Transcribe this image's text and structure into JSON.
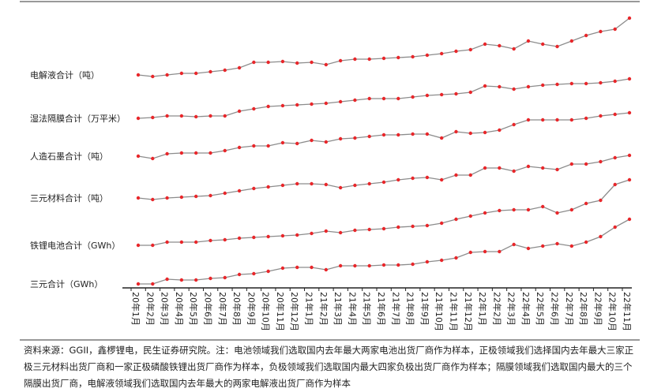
{
  "chart_data": {
    "type": "line",
    "categories": [
      "20年1月",
      "20年2月",
      "20年3月",
      "20年4月",
      "20年5月",
      "20年6月",
      "20年7月",
      "20年8月",
      "20年9月",
      "20年10月",
      "20年11月",
      "20年12月",
      "21年1月",
      "21年2月",
      "21年3月",
      "21年4月",
      "21年5月",
      "21年6月",
      "21年7月",
      "21年8月",
      "21年9月",
      "21年10月",
      "21年11月",
      "21年12月",
      "22年1月",
      "22年2月",
      "22年3月",
      "22年4月",
      "22年5月",
      "22年6月",
      "22年7月",
      "22年8月",
      "22年9月",
      "22年10月",
      "22年11月"
    ],
    "ylim": [
      0,
      345
    ],
    "color": "#8c8c8c",
    "marker_color": "#e8262a",
    "series": [
      {
        "name": "电解液合计（吨）",
        "values": [
          270,
          268,
          270,
          272,
          272,
          274,
          276,
          279,
          286,
          286,
          287,
          285,
          286,
          283,
          288,
          290,
          290,
          291,
          292,
          293,
          295,
          297,
          300,
          302,
          309,
          307,
          303,
          313,
          309,
          306,
          313,
          320,
          325,
          328,
          342
        ]
      },
      {
        "name": "湿法隔膜合计（万平米）",
        "values": [
          215,
          216,
          218,
          218,
          217,
          218,
          218,
          224,
          227,
          230,
          231,
          232,
          233,
          234,
          236,
          238,
          240,
          240,
          240,
          242,
          244,
          245,
          246,
          248,
          256,
          255,
          252,
          255,
          257,
          258,
          259,
          259,
          260,
          262,
          265
        ]
      },
      {
        "name": "人造石墨合计（吨）",
        "values": [
          167,
          164,
          170,
          171,
          171,
          171,
          174,
          178,
          180,
          180,
          184,
          183,
          187,
          185,
          189,
          190,
          192,
          194,
          194,
          195,
          195,
          190,
          198,
          196,
          197,
          200,
          207,
          213,
          213,
          213,
          213,
          215,
          218,
          220,
          222
        ]
      },
      {
        "name": "三元材料合计（吨）",
        "values": [
          114,
          112,
          114,
          115,
          116,
          117,
          120,
          123,
          126,
          128,
          130,
          132,
          132,
          131,
          127,
          130,
          132,
          134,
          137,
          139,
          140,
          137,
          143,
          143,
          152,
          152,
          148,
          154,
          152,
          150,
          157,
          157,
          160,
          165,
          168
        ]
      },
      {
        "name": "铁锂电池合计（GWh）",
        "values": [
          54,
          54,
          58,
          58,
          58,
          60,
          61,
          63,
          64,
          65,
          66,
          67,
          69,
          72,
          70,
          73,
          74,
          75,
          77,
          78,
          79,
          82,
          87,
          91,
          95,
          98,
          99,
          99,
          103,
          95,
          99,
          107,
          111,
          131,
          137
        ]
      },
      {
        "name": "三元合计（GWh）",
        "values": [
          5,
          5,
          11,
          10,
          10,
          12,
          13,
          17,
          18,
          21,
          25,
          26,
          26,
          23,
          28,
          28,
          28,
          29,
          29,
          30,
          33,
          35,
          38,
          45,
          46,
          46,
          55,
          50,
          53,
          56,
          53,
          58,
          65,
          77,
          87
        ]
      }
    ]
  },
  "note": "资料来源：GGII，鑫椤锂电，民生证券研究院。注：电池领域我们选取国内去年最大两家电池出货厂商作为样本，正极领域我们选择国内去年最大三家正极三元材料出货厂商和一家正极磷酸铁锂出货厂商作为样本，负极领域我们选取国内最大四家负极出货厂商作为样本；隔膜领域我们选取国内最大的三个隔膜出货厂商，电解液领域我们选取国内去年最大的两家电解液出货厂商作为样本"
}
